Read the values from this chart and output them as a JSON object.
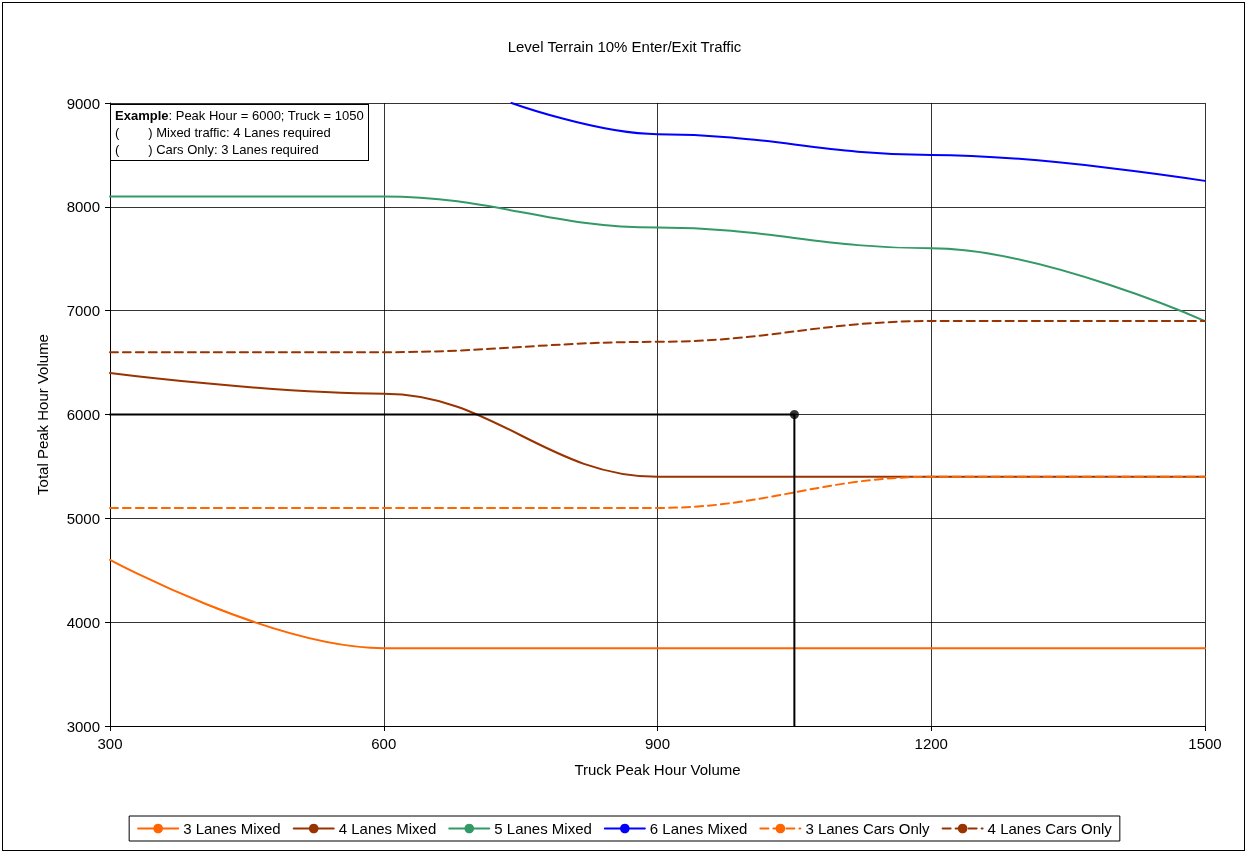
{
  "chart_data": {
    "type": "line",
    "title": "Level Terrain 10% Enter/Exit Traffic",
    "xlabel": "Truck Peak Hour Volume",
    "ylabel": "Total Peak Hour Volume",
    "x": [
      300,
      600,
      900,
      1200,
      1500
    ],
    "series": [
      {
        "name": "3 Lanes Mixed",
        "color": "#ff6600",
        "values": [
          4600,
          3750,
          3750,
          3750,
          3750
        ]
      },
      {
        "name": "4 Lanes Mixed",
        "color": "#993300",
        "values": [
          6400,
          6200,
          5400,
          5400,
          5400
        ]
      },
      {
        "name": "5 Lanes Mixed",
        "color": "#339966",
        "values": [
          8100,
          8100,
          7800,
          7600,
          6900
        ]
      },
      {
        "name": "6 Lanes Mixed",
        "color": "#0000ff",
        "x": [
          740,
          900,
          1200,
          1500
        ],
        "values": [
          9000,
          8700,
          8500,
          8250
        ]
      },
      {
        "name": "3 Lanes Cars Only",
        "color": "#ff6600",
        "line_style": "dashed",
        "values": [
          5100,
          5100,
          5100,
          5400,
          5400
        ]
      },
      {
        "name": "4 Lanes Cars Only",
        "color": "#993300",
        "line_style": "dashed",
        "values": [
          6600,
          6600,
          6700,
          6900,
          6900
        ]
      },
      {
        "color": "#000000",
        "x": [
          300,
          1050,
          1050
        ],
        "values": [
          6000,
          6000,
          3000
        ]
      },
      {
        "type": "scatter",
        "marker": "circle",
        "color": "#000000",
        "x": [
          1050
        ],
        "values": [
          6000
        ]
      }
    ],
    "xlim": [
      300,
      1500
    ],
    "xticks": [
      300,
      600,
      900,
      1200,
      1500
    ],
    "ylim": [
      3000,
      9000
    ],
    "yticks": [
      3000,
      4000,
      5000,
      6000,
      7000,
      8000,
      9000
    ],
    "grid": true,
    "legend": "bottom",
    "marker": "none",
    "line_style": "solid",
    "annotations": [
      "Example: Peak Hour = 6000; Truck = 1050",
      "(        ) Mixed traffic: 4 Lanes required",
      "(        ) Cars Only: 3 Lanes required"
    ]
  }
}
